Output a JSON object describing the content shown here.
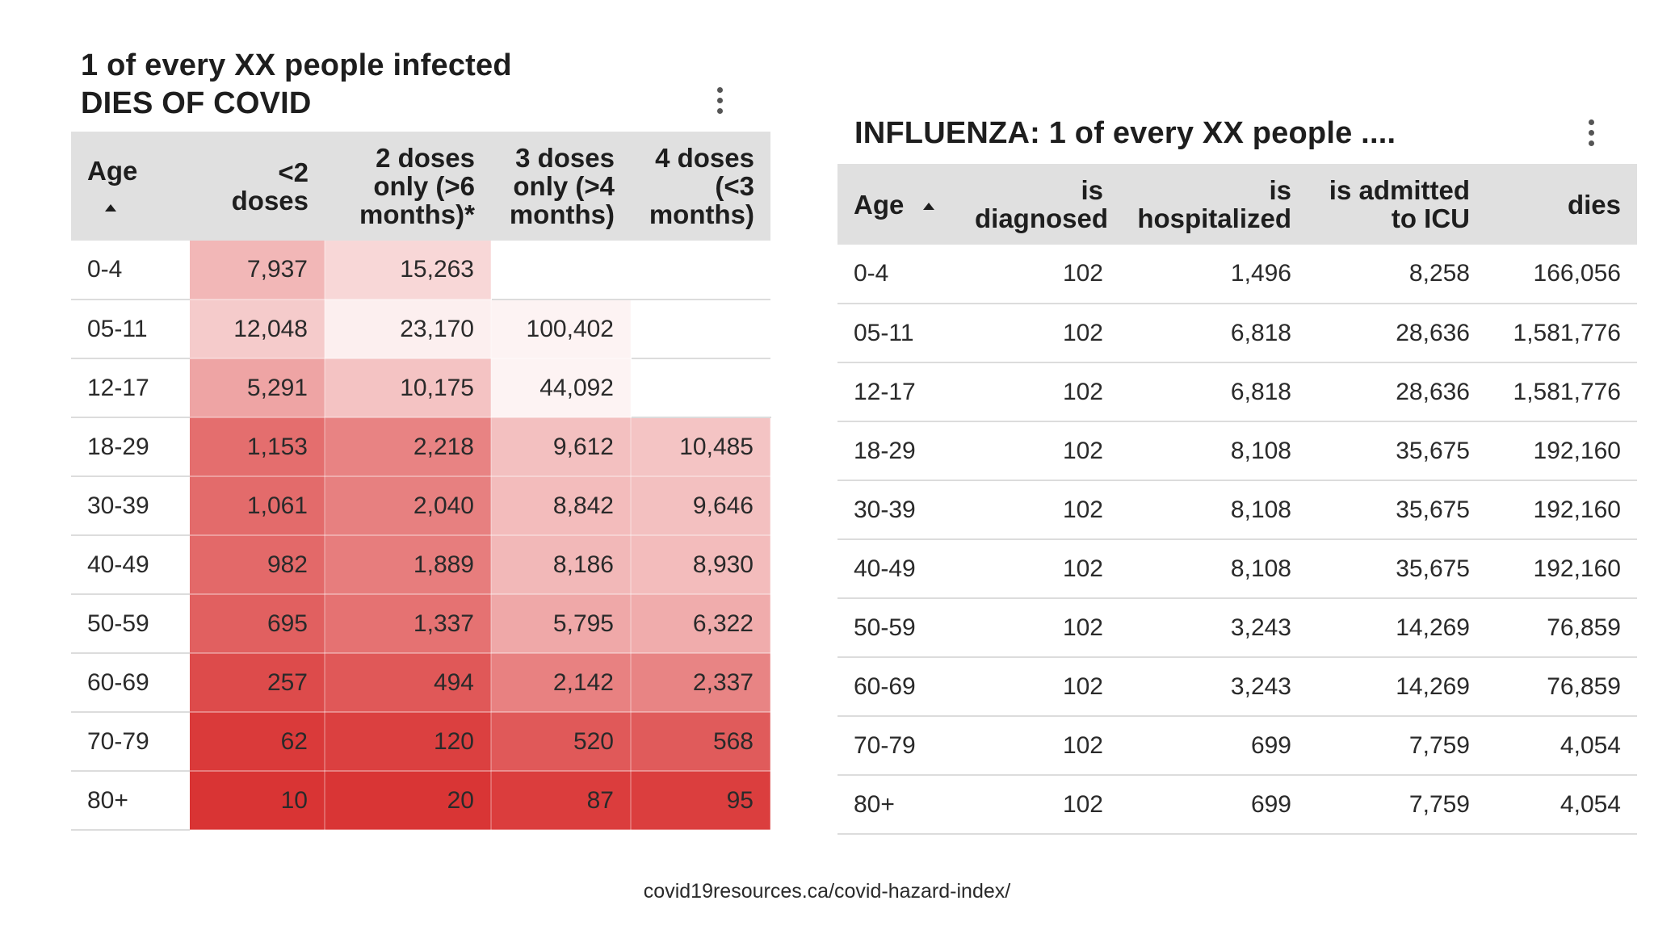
{
  "chart_data": [
    {
      "type": "table",
      "title": "1 of every XX people infected",
      "subtitle": "DIES OF COVID",
      "columns": [
        "Age",
        "<2 doses",
        "2 doses only (>6 months)*",
        "3 doses only (>4 months)",
        "4 doses (<3 months)"
      ],
      "sort": "Age ascending",
      "rows": [
        {
          "age": "0-4",
          "values": [
            7937,
            15263,
            null,
            null
          ],
          "display": [
            "7,937",
            "15,263",
            "",
            ""
          ]
        },
        {
          "age": "05-11",
          "values": [
            12048,
            23170,
            100402,
            null
          ],
          "display": [
            "12,048",
            "23,170",
            "100,402",
            ""
          ]
        },
        {
          "age": "12-17",
          "values": [
            5291,
            10175,
            44092,
            null
          ],
          "display": [
            "5,291",
            "10,175",
            "44,092",
            ""
          ]
        },
        {
          "age": "18-29",
          "values": [
            1153,
            2218,
            9612,
            10485
          ],
          "display": [
            "1,153",
            "2,218",
            "9,612",
            "10,485"
          ]
        },
        {
          "age": "30-39",
          "values": [
            1061,
            2040,
            8842,
            9646
          ],
          "display": [
            "1,061",
            "2,040",
            "8,842",
            "9,646"
          ]
        },
        {
          "age": "40-49",
          "values": [
            982,
            1889,
            8186,
            8930
          ],
          "display": [
            "982",
            "1,889",
            "8,186",
            "8,930"
          ]
        },
        {
          "age": "50-59",
          "values": [
            695,
            1337,
            5795,
            6322
          ],
          "display": [
            "695",
            "1,337",
            "5,795",
            "6,322"
          ]
        },
        {
          "age": "60-69",
          "values": [
            257,
            494,
            2142,
            2337
          ],
          "display": [
            "257",
            "494",
            "2,142",
            "2,337"
          ]
        },
        {
          "age": "70-79",
          "values": [
            62,
            120,
            520,
            568
          ],
          "display": [
            "62",
            "120",
            "520",
            "568"
          ]
        },
        {
          "age": "80+",
          "values": [
            10,
            20,
            87,
            95
          ],
          "display": [
            "10",
            "20",
            "87",
            "95"
          ]
        }
      ],
      "heatmap": {
        "high_color": "#d93434",
        "low_color": "#ffffff",
        "scale": "log",
        "darker_means": "fewer people per death"
      }
    },
    {
      "type": "table",
      "title": "INFLUENZA: 1 of every XX people ....",
      "columns": [
        "Age",
        "is diagnosed",
        "is hospitalized",
        "is admitted to ICU",
        "dies"
      ],
      "sort": "Age ascending",
      "rows": [
        {
          "age": "0-4",
          "values": [
            102,
            1496,
            8258,
            166056
          ],
          "display": [
            "102",
            "1,496",
            "8,258",
            "166,056"
          ]
        },
        {
          "age": "05-11",
          "values": [
            102,
            6818,
            28636,
            1581776
          ],
          "display": [
            "102",
            "6,818",
            "28,636",
            "1,581,776"
          ]
        },
        {
          "age": "12-17",
          "values": [
            102,
            6818,
            28636,
            1581776
          ],
          "display": [
            "102",
            "6,818",
            "28,636",
            "1,581,776"
          ]
        },
        {
          "age": "18-29",
          "values": [
            102,
            8108,
            35675,
            192160
          ],
          "display": [
            "102",
            "8,108",
            "35,675",
            "192,160"
          ]
        },
        {
          "age": "30-39",
          "values": [
            102,
            8108,
            35675,
            192160
          ],
          "display": [
            "102",
            "8,108",
            "35,675",
            "192,160"
          ]
        },
        {
          "age": "40-49",
          "values": [
            102,
            8108,
            35675,
            192160
          ],
          "display": [
            "102",
            "8,108",
            "35,675",
            "192,160"
          ]
        },
        {
          "age": "50-59",
          "values": [
            102,
            3243,
            14269,
            76859
          ],
          "display": [
            "102",
            "3,243",
            "14,269",
            "76,859"
          ]
        },
        {
          "age": "60-69",
          "values": [
            102,
            3243,
            14269,
            76859
          ],
          "display": [
            "102",
            "3,243",
            "14,269",
            "76,859"
          ]
        },
        {
          "age": "70-79",
          "values": [
            102,
            699,
            7759,
            4054
          ],
          "display": [
            "102",
            "699",
            "7,759",
            "4,054"
          ]
        },
        {
          "age": "80+",
          "values": [
            102,
            699,
            7759,
            4054
          ],
          "display": [
            "102",
            "699",
            "7,759",
            "4,054"
          ]
        }
      ]
    }
  ],
  "covid_panel": {
    "title_line1": "1 of every XX people infected",
    "title_line2": "DIES OF COVID",
    "menu_icon": "more-vert-icon",
    "headers": {
      "age": "Age",
      "c1": [
        "<2",
        "doses"
      ],
      "c2": [
        "2 doses",
        "only (>6",
        "months)*"
      ],
      "c3": [
        "3 doses",
        "only (>4",
        "months)"
      ],
      "c4": [
        "4 doses",
        "(<3",
        "months)"
      ]
    }
  },
  "flu_panel": {
    "title": "INFLUENZA: 1 of every XX people ....",
    "menu_icon": "more-vert-icon",
    "headers": {
      "age": "Age",
      "c1": [
        "is",
        "diagnosed"
      ],
      "c2": [
        "is",
        "hospitalized"
      ],
      "c3": [
        "is admitted",
        "to ICU"
      ],
      "c4": [
        "dies"
      ]
    }
  },
  "source_text": "covid19resources.ca/covid-hazard-index/"
}
